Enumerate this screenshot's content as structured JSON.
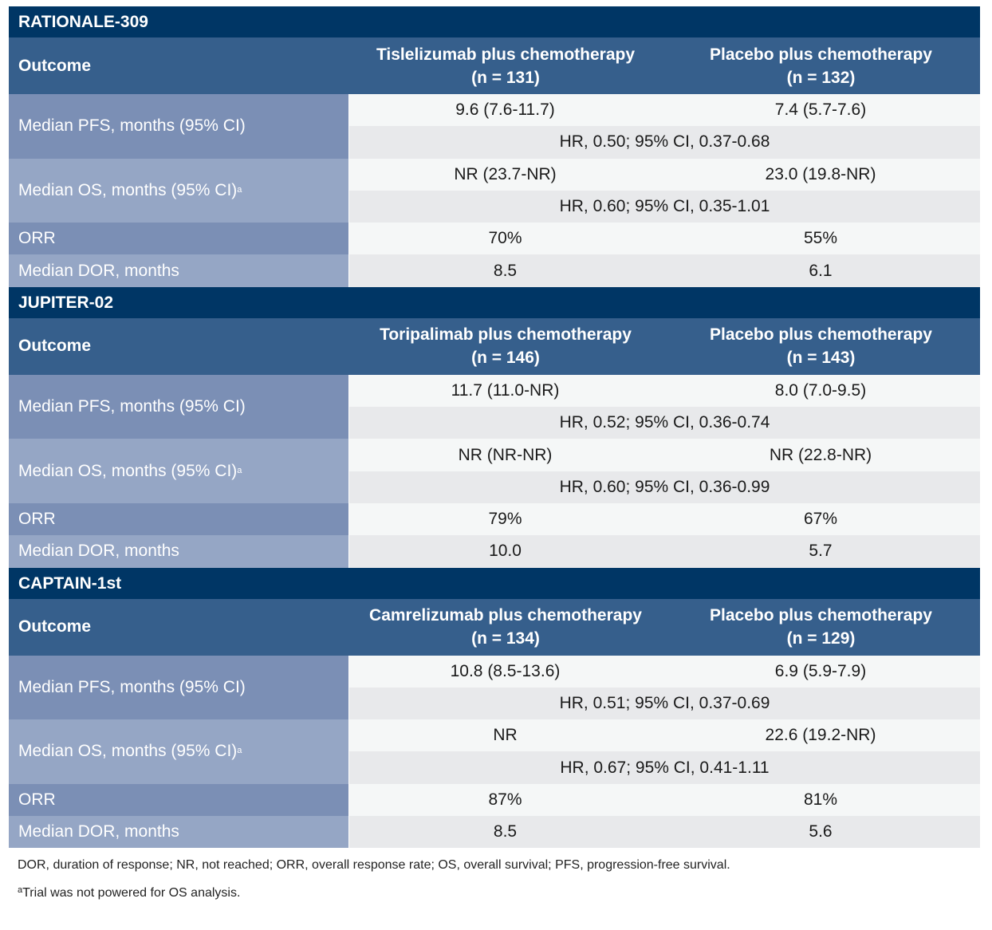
{
  "sections": [
    {
      "title": "RATIONALE-309",
      "header": {
        "outcome": "Outcome",
        "arm1": "Tislelizumab plus chemotherapy",
        "arm1_n": "(n = 131)",
        "arm2": "Placebo plus chemotherapy",
        "arm2_n": "(n = 132)"
      },
      "rows": [
        {
          "label": "Median PFS, months (95% CI)",
          "sup": "",
          "arm1": "9.6 (7.6-11.7)",
          "arm2": "7.4 (5.7-7.6)",
          "hr": "HR, 0.50; 95% CI, 0.37-0.68"
        },
        {
          "label": "Median OS, months (95% CI)",
          "sup": "a",
          "arm1": "NR (23.7-NR)",
          "arm2": "23.0 (19.8-NR)",
          "hr": "HR, 0.60; 95% CI, 0.35-1.01"
        },
        {
          "label": "ORR",
          "sup": "",
          "arm1": "70%",
          "arm2": "55%"
        },
        {
          "label": "Median DOR, months",
          "sup": "",
          "arm1": "8.5",
          "arm2": "6.1"
        }
      ]
    },
    {
      "title": "JUPITER-02",
      "header": {
        "outcome": "Outcome",
        "arm1": "Toripalimab plus chemotherapy",
        "arm1_n": "(n = 146)",
        "arm2": "Placebo plus chemotherapy",
        "arm2_n": "(n = 143)"
      },
      "rows": [
        {
          "label": "Median PFS, months (95% CI)",
          "sup": "",
          "arm1": "11.7 (11.0-NR)",
          "arm2": "8.0 (7.0-9.5)",
          "hr": "HR, 0.52; 95% CI, 0.36-0.74"
        },
        {
          "label": "Median OS, months (95% CI)",
          "sup": "a",
          "arm1": "NR (NR-NR)",
          "arm2": "NR (22.8-NR)",
          "hr": "HR, 0.60; 95% CI, 0.36-0.99"
        },
        {
          "label": "ORR",
          "sup": "",
          "arm1": "79%",
          "arm2": "67%"
        },
        {
          "label": "Median DOR, months",
          "sup": "",
          "arm1": "10.0",
          "arm2": "5.7"
        }
      ]
    },
    {
      "title": "CAPTAIN-1st",
      "header": {
        "outcome": "Outcome",
        "arm1": "Camrelizumab plus chemotherapy",
        "arm1_n": "(n = 134)",
        "arm2": "Placebo plus chemotherapy",
        "arm2_n": "(n = 129)"
      },
      "rows": [
        {
          "label": "Median PFS, months (95% CI)",
          "sup": "",
          "arm1": "10.8 (8.5-13.6)",
          "arm2": "6.9 (5.9-7.9)",
          "hr": "HR, 0.51; 95% CI, 0.37-0.69"
        },
        {
          "label": "Median OS, months (95% CI)",
          "sup": "a",
          "arm1": "NR",
          "arm2": "22.6 (19.2-NR)",
          "hr": "HR, 0.67; 95% CI, 0.41-1.11"
        },
        {
          "label": "ORR",
          "sup": "",
          "arm1": "87%",
          "arm2": "81%"
        },
        {
          "label": "Median DOR, months",
          "sup": "",
          "arm1": "8.5",
          "arm2": "5.6"
        }
      ]
    }
  ],
  "footnotes": {
    "abbreviations": "DOR, duration of response; NR, not reached; ORR, overall response rate; OS, overall survival; PFS, progression-free survival.",
    "a_marker": "a",
    "a_text": "Trial was not powered for OS analysis."
  }
}
